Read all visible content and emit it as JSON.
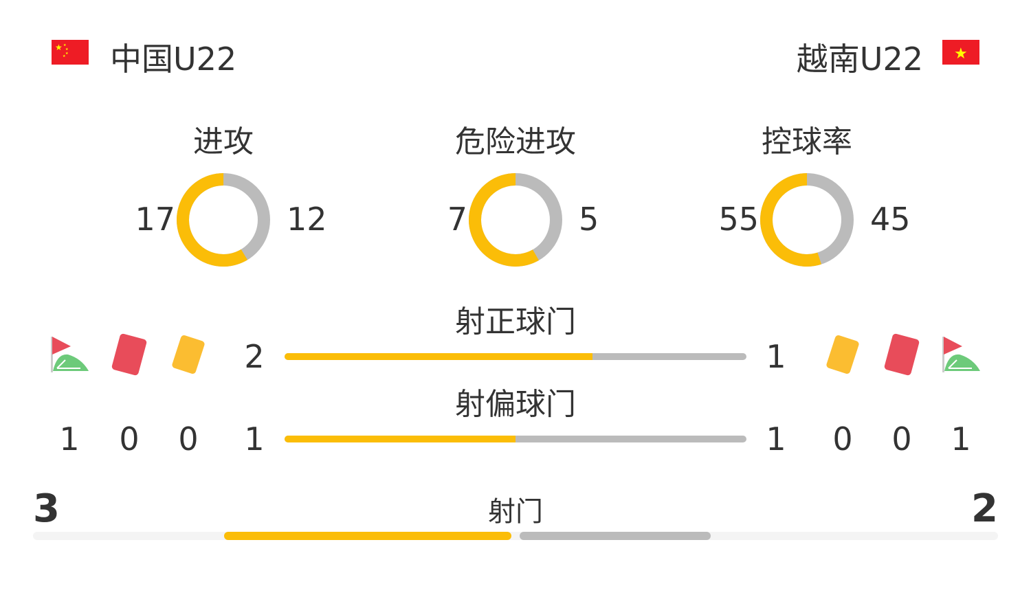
{
  "home": {
    "name": "中国U22",
    "flag": "china-flag-icon"
  },
  "away": {
    "name": "越南U22",
    "flag": "vietnam-flag-icon"
  },
  "colors": {
    "home": "#fbbd08",
    "away": "#bbbbbb"
  },
  "donuts": [
    {
      "label": "进攻",
      "home": "17",
      "away": "12"
    },
    {
      "label": "危险进攻",
      "home": "7",
      "away": "5"
    },
    {
      "label": "控球率",
      "home": "55",
      "away": "45"
    }
  ],
  "bars": [
    {
      "label": "射正球门",
      "home": "2",
      "away": "1"
    },
    {
      "label": "射偏球门",
      "home": "1",
      "away": "1"
    }
  ],
  "events": {
    "home": {
      "corners": "1",
      "red_cards": "0",
      "yellow_cards": "0"
    },
    "away": {
      "corners": "1",
      "red_cards": "0",
      "yellow_cards": "0"
    }
  },
  "shots": {
    "label": "射门",
    "home": "3",
    "away": "2"
  }
}
